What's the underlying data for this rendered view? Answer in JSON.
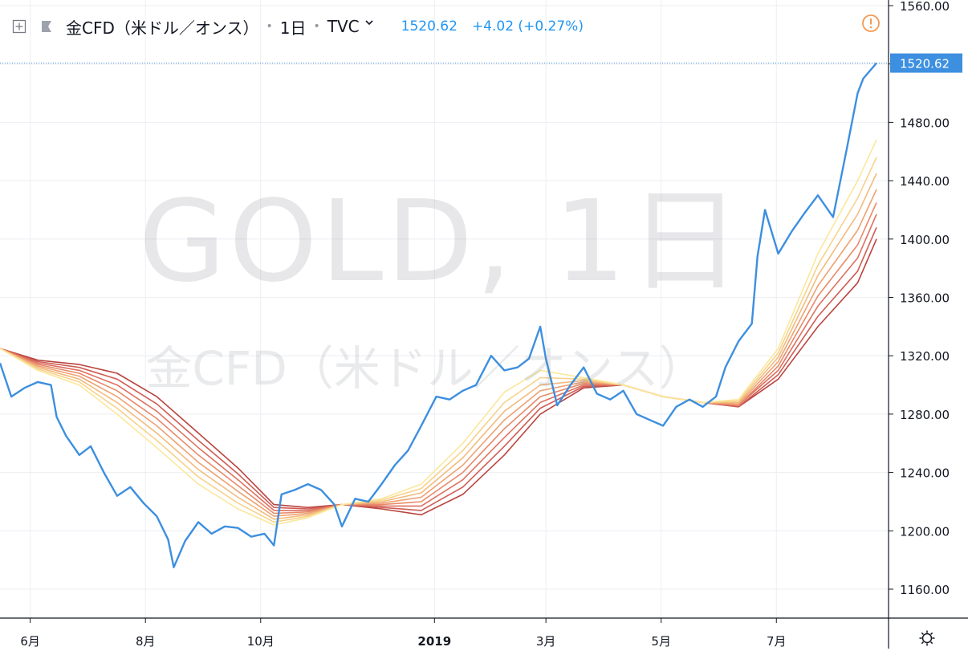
{
  "header": {
    "title": "金CFD（米ドル／オンス）",
    "interval": "1日",
    "provider": "TVC",
    "price": "1520.62",
    "change": "+4.02 (+0.27%)"
  },
  "watermark": {
    "symbol": "GOLD, 1日",
    "description": "金CFD（米ドル／オンス）"
  },
  "icons": {
    "layout": "plus-square-icon",
    "series": "series-flag-icon",
    "provider_menu": "chevron-down-icon",
    "alert": "alert-circle-icon",
    "settings": "gear-icon"
  },
  "colors": {
    "price_line": "#3d8fe0",
    "last_price_label": "#3d8fe0",
    "alert": "#f29a55",
    "grid": "#eceef2",
    "ribbon": [
      "#fbe79a",
      "#f7d28a",
      "#f3bb7d",
      "#eea272",
      "#e88a68",
      "#dd7160",
      "#cf5c55",
      "#b9443e"
    ]
  },
  "chart_data": {
    "type": "line",
    "title": "",
    "xlabel": "",
    "ylabel": "",
    "ylim": [
      1140,
      1560
    ],
    "yticks": [
      "1160.00",
      "1200.00",
      "1240.00",
      "1280.00",
      "1320.00",
      "1360.00",
      "1400.00",
      "1440.00",
      "1480.00",
      "1520.00",
      "1560.00"
    ],
    "ytick_values": [
      1160,
      1200,
      1240,
      1280,
      1320,
      1360,
      1400,
      1440,
      1480,
      1520,
      1560
    ],
    "last_price_label": "1520.62",
    "last_price": 1520.62,
    "x_range": [
      "2018-05-16",
      "2019-08-23"
    ],
    "xticks": [
      {
        "label": "6月",
        "date": "2018-06-01",
        "bold": false
      },
      {
        "label": "8月",
        "date": "2018-08-01",
        "bold": false
      },
      {
        "label": "10月",
        "date": "2018-10-01",
        "bold": false
      },
      {
        "label": "2019",
        "date": "2019-01-01",
        "bold": true
      },
      {
        "label": "3月",
        "date": "2019-03-01",
        "bold": false
      },
      {
        "label": "5月",
        "date": "2019-05-01",
        "bold": false
      },
      {
        "label": "7月",
        "date": "2019-07-01",
        "bold": false
      }
    ],
    "grid": true,
    "price_series": {
      "dates": [
        "2018-05-16",
        "2018-05-22",
        "2018-05-29",
        "2018-06-05",
        "2018-06-12",
        "2018-06-15",
        "2018-06-20",
        "2018-06-27",
        "2018-07-03",
        "2018-07-10",
        "2018-07-17",
        "2018-07-24",
        "2018-07-31",
        "2018-08-07",
        "2018-08-13",
        "2018-08-16",
        "2018-08-22",
        "2018-08-29",
        "2018-09-05",
        "2018-09-12",
        "2018-09-19",
        "2018-09-26",
        "2018-10-03",
        "2018-10-08",
        "2018-10-12",
        "2018-10-19",
        "2018-10-26",
        "2018-11-02",
        "2018-11-09",
        "2018-11-13",
        "2018-11-20",
        "2018-11-27",
        "2018-12-04",
        "2018-12-11",
        "2018-12-18",
        "2018-12-25",
        "2019-01-02",
        "2019-01-09",
        "2019-01-16",
        "2019-01-23",
        "2019-01-31",
        "2019-02-07",
        "2019-02-14",
        "2019-02-20",
        "2019-02-26",
        "2019-03-01",
        "2019-03-07",
        "2019-03-14",
        "2019-03-21",
        "2019-03-28",
        "2019-04-04",
        "2019-04-11",
        "2019-04-18",
        "2019-04-25",
        "2019-05-02",
        "2019-05-09",
        "2019-05-16",
        "2019-05-23",
        "2019-05-30",
        "2019-06-04",
        "2019-06-11",
        "2019-06-18",
        "2019-06-21",
        "2019-06-25",
        "2019-07-02",
        "2019-07-09",
        "2019-07-16",
        "2019-07-23",
        "2019-07-31",
        "2019-08-07",
        "2019-08-13",
        "2019-08-16",
        "2019-08-23"
      ],
      "values": [
        1315,
        1292,
        1298,
        1302,
        1300,
        1278,
        1265,
        1252,
        1258,
        1240,
        1224,
        1230,
        1219,
        1210,
        1194,
        1175,
        1193,
        1206,
        1198,
        1203,
        1202,
        1196,
        1198,
        1190,
        1225,
        1228,
        1232,
        1228,
        1218,
        1203,
        1222,
        1220,
        1232,
        1245,
        1255,
        1272,
        1292,
        1290,
        1296,
        1300,
        1320,
        1310,
        1312,
        1318,
        1340,
        1318,
        1286,
        1300,
        1312,
        1294,
        1290,
        1296,
        1280,
        1276,
        1272,
        1285,
        1290,
        1285,
        1292,
        1312,
        1330,
        1342,
        1388,
        1420,
        1390,
        1405,
        1418,
        1430,
        1415,
        1460,
        1500,
        1510,
        1520.62
      ]
    },
    "ribbon_series": {
      "dates": [
        "2018-05-16",
        "2018-06-05",
        "2018-06-27",
        "2018-07-17",
        "2018-08-07",
        "2018-08-29",
        "2018-09-19",
        "2018-10-08",
        "2018-10-26",
        "2018-11-13",
        "2018-12-04",
        "2018-12-25",
        "2019-01-16",
        "2019-02-07",
        "2019-02-26",
        "2019-03-21",
        "2019-04-11",
        "2019-05-02",
        "2019-05-23",
        "2019-06-11",
        "2019-07-02",
        "2019-07-23",
        "2019-08-13",
        "2019-08-23"
      ],
      "lines": [
        {
          "values": [
            1325,
            1310,
            1300,
            1280,
            1257,
            1232,
            1215,
            1204,
            1209,
            1218,
            1222,
            1232,
            1260,
            1295,
            1310,
            1305,
            1300,
            1292,
            1288,
            1290,
            1325,
            1390,
            1440,
            1468
          ]
        },
        {
          "values": [
            1325,
            1311,
            1302,
            1284,
            1262,
            1237,
            1219,
            1206,
            1210,
            1218,
            1221,
            1229,
            1255,
            1288,
            1305,
            1304,
            1300,
            1292,
            1288,
            1289,
            1322,
            1382,
            1428,
            1456
          ]
        },
        {
          "values": [
            1325,
            1312,
            1304,
            1288,
            1267,
            1242,
            1223,
            1208,
            1211,
            1218,
            1220,
            1226,
            1250,
            1282,
            1300,
            1303,
            1300,
            1292,
            1288,
            1288,
            1319,
            1375,
            1417,
            1445
          ]
        },
        {
          "values": [
            1325,
            1313,
            1306,
            1292,
            1272,
            1247,
            1227,
            1210,
            1212,
            1218,
            1219,
            1223,
            1245,
            1276,
            1296,
            1302,
            1300,
            1292,
            1288,
            1287,
            1316,
            1368,
            1406,
            1434
          ]
        },
        {
          "values": [
            1325,
            1314,
            1308,
            1296,
            1277,
            1252,
            1231,
            1212,
            1213,
            1218,
            1218,
            1220,
            1240,
            1270,
            1292,
            1301,
            1300,
            1292,
            1288,
            1286,
            1313,
            1361,
            1396,
            1425
          ]
        },
        {
          "values": [
            1325,
            1315,
            1310,
            1300,
            1282,
            1257,
            1235,
            1214,
            1214,
            1218,
            1217,
            1217,
            1235,
            1264,
            1288,
            1300,
            1300,
            1292,
            1288,
            1286,
            1310,
            1354,
            1387,
            1417
          ]
        },
        {
          "values": [
            1325,
            1316,
            1312,
            1304,
            1287,
            1262,
            1239,
            1216,
            1215,
            1218,
            1216,
            1214,
            1230,
            1258,
            1284,
            1299,
            1300,
            1292,
            1288,
            1285,
            1307,
            1347,
            1378,
            1408
          ]
        },
        {
          "values": [
            1325,
            1317,
            1314,
            1308,
            1292,
            1267,
            1243,
            1218,
            1216,
            1218,
            1215,
            1211,
            1225,
            1252,
            1280,
            1298,
            1300,
            1292,
            1288,
            1285,
            1304,
            1340,
            1370,
            1400
          ]
        }
      ]
    }
  }
}
